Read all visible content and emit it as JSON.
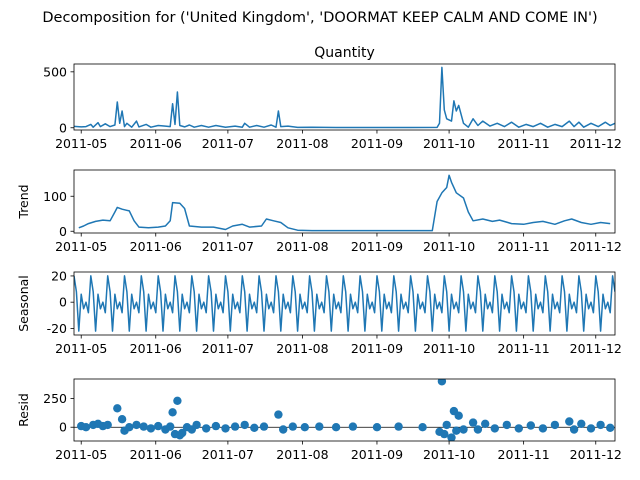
{
  "chart_data": {
    "type": "line",
    "suptitle": "Decomposition for ('United Kingdom', 'DOORMAT KEEP CALM AND COME IN')",
    "color": "#1f77b4",
    "x_range": [
      "2011-04-28",
      "2011-12-09"
    ],
    "x_ticks": [
      "2011-05",
      "2011-06",
      "2011-07",
      "2011-08",
      "2011-09",
      "2011-10",
      "2011-11",
      "2011-12"
    ],
    "panels": [
      {
        "key": "observed",
        "title": "Quantity",
        "ylabel": "",
        "kind": "line",
        "ylim": [
          -20,
          570
        ],
        "yticks": [
          0,
          500
        ],
        "points": [
          [
            "2011-04-28",
            12
          ],
          [
            "2011-05-01",
            8
          ],
          [
            "2011-05-03",
            10
          ],
          [
            "2011-05-05",
            30
          ],
          [
            "2011-05-06",
            5
          ],
          [
            "2011-05-08",
            45
          ],
          [
            "2011-05-09",
            10
          ],
          [
            "2011-05-11",
            35
          ],
          [
            "2011-05-13",
            10
          ],
          [
            "2011-05-15",
            25
          ],
          [
            "2011-05-16",
            230
          ],
          [
            "2011-05-17",
            40
          ],
          [
            "2011-05-18",
            150
          ],
          [
            "2011-05-19",
            10
          ],
          [
            "2011-05-20",
            40
          ],
          [
            "2011-05-22",
            5
          ],
          [
            "2011-05-24",
            60
          ],
          [
            "2011-05-25",
            8
          ],
          [
            "2011-05-28",
            30
          ],
          [
            "2011-05-30",
            5
          ],
          [
            "2011-06-02",
            20
          ],
          [
            "2011-06-05",
            15
          ],
          [
            "2011-06-07",
            10
          ],
          [
            "2011-06-08",
            215
          ],
          [
            "2011-06-09",
            30
          ],
          [
            "2011-06-10",
            320
          ],
          [
            "2011-06-11",
            20
          ],
          [
            "2011-06-13",
            8
          ],
          [
            "2011-06-15",
            25
          ],
          [
            "2011-06-17",
            5
          ],
          [
            "2011-06-20",
            20
          ],
          [
            "2011-06-23",
            5
          ],
          [
            "2011-06-26",
            20
          ],
          [
            "2011-06-30",
            5
          ],
          [
            "2011-07-04",
            15
          ],
          [
            "2011-07-07",
            5
          ],
          [
            "2011-07-08",
            40
          ],
          [
            "2011-07-10",
            5
          ],
          [
            "2011-07-13",
            20
          ],
          [
            "2011-07-16",
            5
          ],
          [
            "2011-07-19",
            25
          ],
          [
            "2011-07-21",
            5
          ],
          [
            "2011-07-22",
            150
          ],
          [
            "2011-07-23",
            10
          ],
          [
            "2011-07-26",
            15
          ],
          [
            "2011-07-30",
            3
          ],
          [
            "2011-08-05",
            5
          ],
          [
            "2011-08-15",
            2
          ],
          [
            "2011-09-01",
            2
          ],
          [
            "2011-09-15",
            2
          ],
          [
            "2011-09-26",
            3
          ],
          [
            "2011-09-27",
            40
          ],
          [
            "2011-09-28",
            540
          ],
          [
            "2011-09-29",
            160
          ],
          [
            "2011-09-30",
            80
          ],
          [
            "2011-10-02",
            60
          ],
          [
            "2011-10-03",
            240
          ],
          [
            "2011-10-04",
            150
          ],
          [
            "2011-10-05",
            200
          ],
          [
            "2011-10-07",
            40
          ],
          [
            "2011-10-09",
            5
          ],
          [
            "2011-10-11",
            80
          ],
          [
            "2011-10-13",
            20
          ],
          [
            "2011-10-15",
            60
          ],
          [
            "2011-10-18",
            15
          ],
          [
            "2011-10-21",
            40
          ],
          [
            "2011-10-24",
            10
          ],
          [
            "2011-10-27",
            50
          ],
          [
            "2011-10-30",
            5
          ],
          [
            "2011-11-02",
            30
          ],
          [
            "2011-11-05",
            10
          ],
          [
            "2011-11-08",
            40
          ],
          [
            "2011-11-11",
            5
          ],
          [
            "2011-11-14",
            30
          ],
          [
            "2011-11-17",
            10
          ],
          [
            "2011-11-20",
            60
          ],
          [
            "2011-11-22",
            10
          ],
          [
            "2011-11-24",
            50
          ],
          [
            "2011-11-26",
            5
          ],
          [
            "2011-11-29",
            40
          ],
          [
            "2011-12-02",
            10
          ],
          [
            "2011-12-05",
            50
          ],
          [
            "2011-12-07",
            20
          ],
          [
            "2011-12-09",
            40
          ]
        ]
      },
      {
        "key": "trend",
        "title": "",
        "ylabel": "Trend",
        "kind": "line",
        "ylim": [
          -5,
          175
        ],
        "yticks": [
          0,
          100
        ],
        "points": [
          [
            "2011-04-30",
            10
          ],
          [
            "2011-05-02",
            15
          ],
          [
            "2011-05-04",
            22
          ],
          [
            "2011-05-07",
            28
          ],
          [
            "2011-05-10",
            32
          ],
          [
            "2011-05-13",
            30
          ],
          [
            "2011-05-15",
            55
          ],
          [
            "2011-05-16",
            68
          ],
          [
            "2011-05-18",
            63
          ],
          [
            "2011-05-21",
            58
          ],
          [
            "2011-05-23",
            30
          ],
          [
            "2011-05-25",
            12
          ],
          [
            "2011-05-29",
            10
          ],
          [
            "2011-06-02",
            12
          ],
          [
            "2011-06-05",
            15
          ],
          [
            "2011-06-07",
            30
          ],
          [
            "2011-06-08",
            82
          ],
          [
            "2011-06-11",
            80
          ],
          [
            "2011-06-13",
            65
          ],
          [
            "2011-06-15",
            15
          ],
          [
            "2011-06-20",
            12
          ],
          [
            "2011-06-25",
            12
          ],
          [
            "2011-06-30",
            5
          ],
          [
            "2011-07-03",
            15
          ],
          [
            "2011-07-07",
            20
          ],
          [
            "2011-07-10",
            12
          ],
          [
            "2011-07-15",
            15
          ],
          [
            "2011-07-17",
            35
          ],
          [
            "2011-07-20",
            30
          ],
          [
            "2011-07-23",
            25
          ],
          [
            "2011-07-26",
            10
          ],
          [
            "2011-07-30",
            3
          ],
          [
            "2011-08-05",
            2
          ],
          [
            "2011-08-15",
            2
          ],
          [
            "2011-09-01",
            2
          ],
          [
            "2011-09-15",
            2
          ],
          [
            "2011-09-24",
            2
          ],
          [
            "2011-09-26",
            85
          ],
          [
            "2011-09-28",
            110
          ],
          [
            "2011-09-30",
            125
          ],
          [
            "2011-10-01",
            160
          ],
          [
            "2011-10-02",
            140
          ],
          [
            "2011-10-04",
            110
          ],
          [
            "2011-10-07",
            95
          ],
          [
            "2011-10-09",
            55
          ],
          [
            "2011-10-11",
            30
          ],
          [
            "2011-10-15",
            35
          ],
          [
            "2011-10-19",
            28
          ],
          [
            "2011-10-22",
            32
          ],
          [
            "2011-10-27",
            22
          ],
          [
            "2011-11-01",
            20
          ],
          [
            "2011-11-05",
            25
          ],
          [
            "2011-11-09",
            28
          ],
          [
            "2011-11-14",
            20
          ],
          [
            "2011-11-18",
            30
          ],
          [
            "2011-11-21",
            35
          ],
          [
            "2011-11-25",
            25
          ],
          [
            "2011-11-29",
            20
          ],
          [
            "2011-12-03",
            25
          ],
          [
            "2011-12-07",
            22
          ]
        ]
      },
      {
        "key": "seasonal",
        "title": "",
        "ylabel": "Seasonal",
        "kind": "seasonal",
        "ylim": [
          -25,
          23
        ],
        "yticks": [
          -20,
          0,
          20
        ],
        "period": 7,
        "pattern": [
          20,
          8,
          -22,
          6,
          -5,
          0,
          -8
        ]
      },
      {
        "key": "resid",
        "title": "",
        "ylabel": "Resid",
        "kind": "scatter",
        "ylim": [
          -120,
          420
        ],
        "yticks": [
          0,
          250
        ],
        "points": [
          [
            "2011-05-01",
            10
          ],
          [
            "2011-05-03",
            0
          ],
          [
            "2011-05-06",
            20
          ],
          [
            "2011-05-08",
            30
          ],
          [
            "2011-05-10",
            10
          ],
          [
            "2011-05-12",
            20
          ],
          [
            "2011-05-16",
            165
          ],
          [
            "2011-05-18",
            70
          ],
          [
            "2011-05-19",
            -30
          ],
          [
            "2011-05-21",
            0
          ],
          [
            "2011-05-24",
            20
          ],
          [
            "2011-05-27",
            5
          ],
          [
            "2011-05-30",
            -10
          ],
          [
            "2011-06-02",
            10
          ],
          [
            "2011-06-05",
            -20
          ],
          [
            "2011-06-07",
            5
          ],
          [
            "2011-06-08",
            130
          ],
          [
            "2011-06-09",
            -60
          ],
          [
            "2011-06-10",
            230
          ],
          [
            "2011-06-11",
            -70
          ],
          [
            "2011-06-12",
            -50
          ],
          [
            "2011-06-14",
            0
          ],
          [
            "2011-06-16",
            -20
          ],
          [
            "2011-06-18",
            20
          ],
          [
            "2011-06-22",
            -10
          ],
          [
            "2011-06-26",
            10
          ],
          [
            "2011-06-30",
            -10
          ],
          [
            "2011-07-04",
            5
          ],
          [
            "2011-07-08",
            20
          ],
          [
            "2011-07-12",
            -5
          ],
          [
            "2011-07-16",
            5
          ],
          [
            "2011-07-22",
            110
          ],
          [
            "2011-07-24",
            -20
          ],
          [
            "2011-07-28",
            5
          ],
          [
            "2011-08-02",
            0
          ],
          [
            "2011-08-08",
            5
          ],
          [
            "2011-08-15",
            0
          ],
          [
            "2011-08-22",
            5
          ],
          [
            "2011-09-01",
            0
          ],
          [
            "2011-09-10",
            5
          ],
          [
            "2011-09-20",
            0
          ],
          [
            "2011-09-27",
            -40
          ],
          [
            "2011-09-28",
            400
          ],
          [
            "2011-09-29",
            -60
          ],
          [
            "2011-09-30",
            20
          ],
          [
            "2011-10-02",
            -90
          ],
          [
            "2011-10-03",
            140
          ],
          [
            "2011-10-04",
            -30
          ],
          [
            "2011-10-05",
            100
          ],
          [
            "2011-10-07",
            -20
          ],
          [
            "2011-10-11",
            40
          ],
          [
            "2011-10-13",
            -20
          ],
          [
            "2011-10-16",
            30
          ],
          [
            "2011-10-20",
            -10
          ],
          [
            "2011-10-25",
            20
          ],
          [
            "2011-10-30",
            -10
          ],
          [
            "2011-11-04",
            15
          ],
          [
            "2011-11-09",
            -10
          ],
          [
            "2011-11-14",
            20
          ],
          [
            "2011-11-20",
            50
          ],
          [
            "2011-11-22",
            -20
          ],
          [
            "2011-11-25",
            30
          ],
          [
            "2011-11-29",
            -10
          ],
          [
            "2011-12-03",
            20
          ],
          [
            "2011-12-07",
            -5
          ]
        ]
      }
    ]
  }
}
